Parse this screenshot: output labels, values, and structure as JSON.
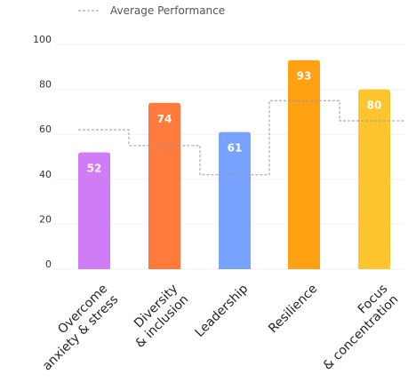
{
  "chart_data": {
    "type": "bar",
    "legend": {
      "label": "Average Performance",
      "placement": "top-left",
      "line_style": "dashed"
    },
    "categories": [
      [
        "Overcome",
        "anxiety & stress"
      ],
      [
        "Diversity",
        "& inclusion"
      ],
      [
        "Leadership"
      ],
      [
        "Resilience"
      ],
      [
        "Focus",
        "& concentration"
      ]
    ],
    "values": [
      52,
      74,
      61,
      93,
      80
    ],
    "average": [
      62,
      55,
      42,
      75,
      66
    ],
    "bar_colors": [
      "#D07CF6",
      "#FF7A3D",
      "#77A2FF",
      "#FFA113",
      "#FFC52E"
    ],
    "average_color": "#999999",
    "yticks": [
      "0",
      "20",
      "40",
      "60",
      "80",
      "100"
    ],
    "ylim": [
      0,
      100
    ],
    "grid": "horizontal, faint",
    "data_labels": [
      "52",
      "74",
      "61",
      "93",
      "80"
    ]
  }
}
